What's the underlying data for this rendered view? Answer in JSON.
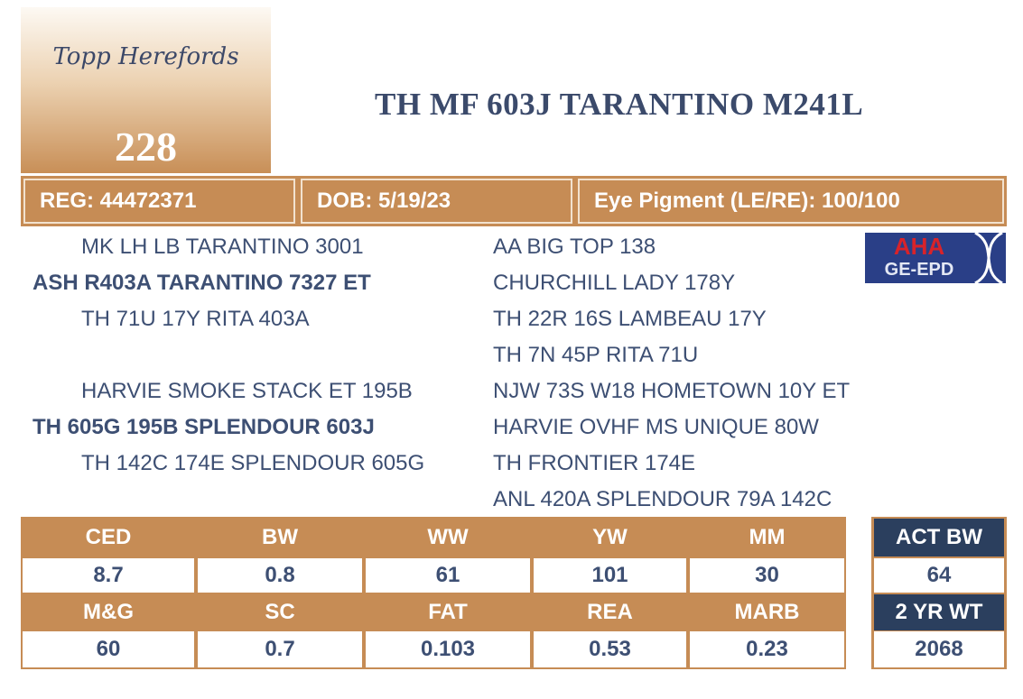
{
  "logo": {
    "brand": "Topp Herefords",
    "lot": "228"
  },
  "title": "TH MF 603J TARANTINO M241L",
  "info": [
    "REG: 44472371",
    "DOB: 5/19/23",
    "Eye Pigment (LE/RE): 100/100"
  ],
  "pedigree": {
    "sire": {
      "name": "ASH R403A TARANTINO 7327 ET",
      "sire": "MK LH LB TARANTINO 3001",
      "dam": "TH 71U 17Y RITA 403A"
    },
    "dam": {
      "name": "TH 605G 195B SPLENDOUR 603J",
      "sire": "HARVIE SMOKE STACK ET 195B",
      "dam": "TH 142C 174E SPLENDOUR 605G"
    },
    "grandparents": [
      "AA BIG TOP 138",
      "CHURCHILL LADY 178Y",
      "TH 22R 16S LAMBEAU 17Y",
      "TH 7N 45P RITA 71U",
      "NJW 73S W18 HOMETOWN 10Y ET",
      "HARVIE OVHF MS UNIQUE 80W",
      "TH FRONTIER 174E",
      "ANL 420A SPLENDOUR 79A 142C"
    ]
  },
  "badge": {
    "top": "AHA",
    "bottom": "GE-EPD"
  },
  "epds": [
    {
      "headers": [
        "CED",
        "BW",
        "WW",
        "YW",
        "MM"
      ],
      "values": [
        "8.7",
        "0.8",
        "61",
        "101",
        "30"
      ]
    },
    {
      "headers": [
        "M&G",
        "SC",
        "FAT",
        "REA",
        "MARB"
      ],
      "values": [
        "60",
        "0.7",
        "0.103",
        "0.53",
        "0.23"
      ]
    }
  ],
  "weights": [
    {
      "label": "ACT BW",
      "value": "64"
    },
    {
      "label": "2 YR WT",
      "value": "2068"
    }
  ]
}
